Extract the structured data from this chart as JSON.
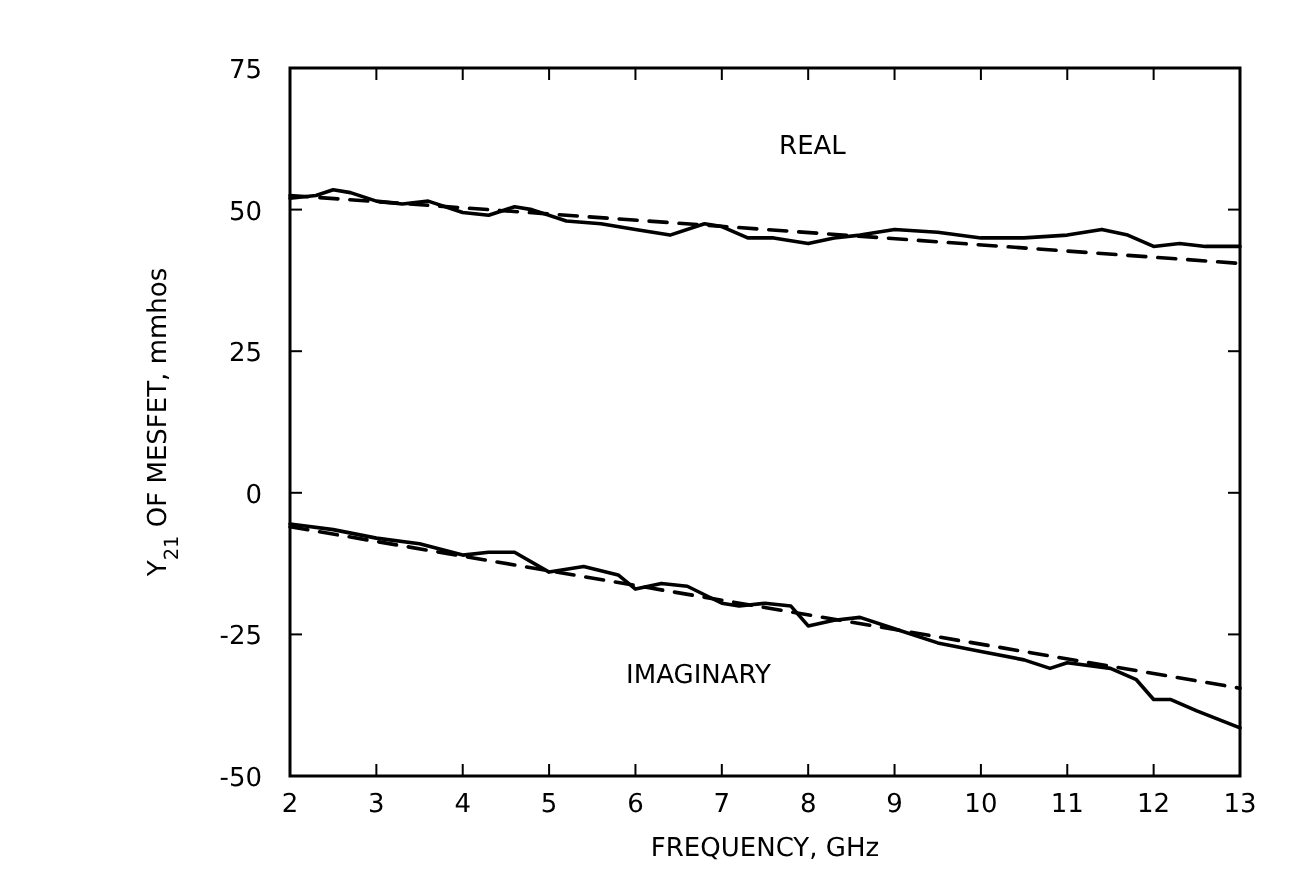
{
  "chart_data": {
    "type": "line",
    "xlabel": "FREQUENCY, GHz",
    "ylabel": "Y$_{21}$ OF MESFET, mmhos",
    "xlim": [
      2,
      13
    ],
    "ylim": [
      -50,
      75
    ],
    "xticks": [
      2,
      3,
      4,
      5,
      6,
      7,
      8,
      9,
      10,
      11,
      12,
      13
    ],
    "yticks": [
      -50,
      -25,
      0,
      25,
      50,
      75
    ],
    "grid": false,
    "series": [
      {
        "name": "REAL",
        "color": "#000000",
        "line_style": "solid",
        "x": [
          2,
          2.3,
          2.5,
          2.7,
          3,
          3.3,
          3.6,
          4,
          4.3,
          4.6,
          4.8,
          5.2,
          5.6,
          6,
          6.4,
          6.8,
          7,
          7.3,
          7.6,
          8,
          8.3,
          8.6,
          9,
          9.5,
          10,
          10.5,
          11,
          11.4,
          11.7,
          12,
          12.3,
          12.6,
          13
        ],
        "values": [
          52,
          52.5,
          53.5,
          53,
          51.5,
          51,
          51.5,
          49.5,
          49,
          50.5,
          50,
          48,
          47.5,
          46.5,
          45.5,
          47.5,
          47,
          45,
          45,
          44,
          45,
          45.5,
          46.5,
          46,
          45,
          45,
          45.5,
          46.5,
          45.5,
          43.5,
          44,
          43.5,
          43.5
        ]
      },
      {
        "color": "#000000",
        "line_style": "dashed",
        "x": [
          2,
          13
        ],
        "values": [
          52.5,
          40.5
        ]
      },
      {
        "name": "IMAGINARY",
        "color": "#000000",
        "line_style": "solid",
        "x": [
          2,
          2.5,
          3,
          3.5,
          4,
          4.3,
          4.6,
          5,
          5.4,
          5.8,
          6,
          6.3,
          6.6,
          7,
          7.2,
          7.5,
          7.8,
          8,
          8.3,
          8.6,
          9,
          9.5,
          10,
          10.5,
          10.8,
          11,
          11.5,
          11.8,
          12,
          12.2,
          12.5,
          13
        ],
        "values": [
          -5.5,
          -6.5,
          -8,
          -9,
          -11,
          -10.5,
          -10.5,
          -14,
          -13,
          -14.5,
          -17,
          -16,
          -16.5,
          -19.5,
          -20,
          -19.5,
          -20,
          -23.5,
          -22.5,
          -22,
          -24,
          -26.5,
          -28,
          -29.5,
          -31,
          -30,
          -31,
          -33,
          -36.5,
          -36.5,
          -38.5,
          -41.5
        ]
      },
      {
        "color": "#000000",
        "line_style": "dashed",
        "x": [
          2,
          13
        ],
        "values": [
          -6,
          -34.5
        ]
      }
    ]
  }
}
